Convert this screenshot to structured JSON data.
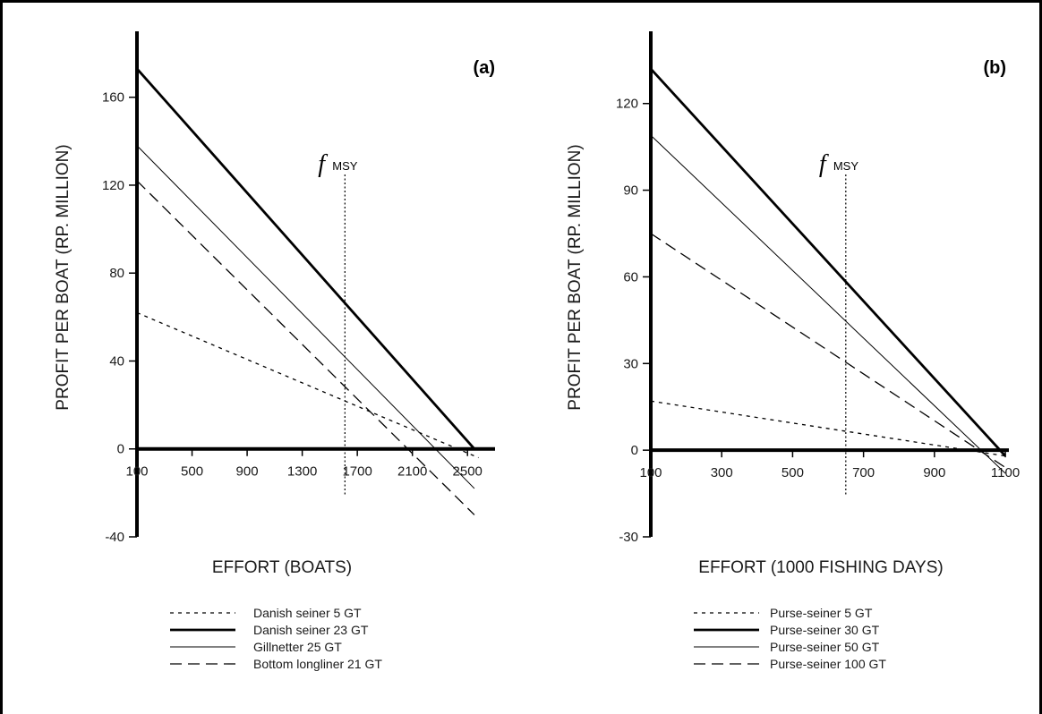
{
  "chart_data": [
    {
      "type": "line",
      "panel_label": "(a)",
      "xlabel": "EFFORT (BOATS)",
      "ylabel": "PROFIT PER BOAT (RP. MILLION)",
      "xlim": [
        100,
        2700
      ],
      "ylim": [
        -40,
        190
      ],
      "xticks": [
        100,
        500,
        900,
        1300,
        1700,
        2100,
        2500
      ],
      "xtick_labels": [
        "100",
        "500",
        "900",
        "1300",
        "1700",
        "2100",
        "2500"
      ],
      "yticks": [
        -40,
        0,
        40,
        80,
        120,
        160
      ],
      "ytick_labels": [
        "-40",
        "0",
        "40",
        "80",
        "120",
        "160"
      ],
      "reference_line": {
        "x": 1610,
        "label_main": "f",
        "label_sub": "MSY"
      },
      "series": [
        {
          "name": "Danish seiner 5 GT",
          "style": "dotted",
          "x": [
            100,
            2580
          ],
          "y": [
            62,
            -4
          ]
        },
        {
          "name": "Danish seiner 23 GT",
          "style": "thick",
          "x": [
            100,
            2550
          ],
          "y": [
            173,
            0
          ]
        },
        {
          "name": "Gillnetter 25 GT",
          "style": "thin",
          "x": [
            100,
            2550
          ],
          "y": [
            138,
            -18
          ]
        },
        {
          "name": "Bottom longliner 21 GT",
          "style": "dashed",
          "x": [
            100,
            2550
          ],
          "y": [
            122,
            -30
          ]
        }
      ]
    },
    {
      "type": "line",
      "panel_label": "(b)",
      "xlabel": "EFFORT (1000 FISHING DAYS)",
      "ylabel": "PROFIT PER BOAT (RP. MILLION)",
      "xlim": [
        100,
        1110
      ],
      "ylim": [
        -30,
        145
      ],
      "xticks": [
        100,
        300,
        500,
        700,
        900,
        1100
      ],
      "xtick_labels": [
        "100",
        "300",
        "500",
        "700",
        "900",
        "1100"
      ],
      "yticks": [
        -30,
        0,
        30,
        60,
        90,
        120
      ],
      "ytick_labels": [
        "-30",
        "0",
        "30",
        "60",
        "90",
        "120"
      ],
      "reference_line": {
        "x": 650,
        "label_main": "f",
        "label_sub": "MSY"
      },
      "series": [
        {
          "name": "Purse-seiner 5 GT",
          "style": "dotted",
          "x": [
            100,
            1100
          ],
          "y": [
            17,
            -2
          ]
        },
        {
          "name": "Purse-seiner 30 GT",
          "style": "thick",
          "x": [
            100,
            1100
          ],
          "y": [
            132,
            -2
          ]
        },
        {
          "name": "Purse-seiner 50 GT",
          "style": "thin",
          "x": [
            100,
            1100
          ],
          "y": [
            109,
            -8
          ]
        },
        {
          "name": "Purse-seiner 100 GT",
          "style": "dashed",
          "x": [
            100,
            1100
          ],
          "y": [
            75,
            -6
          ]
        }
      ]
    }
  ]
}
